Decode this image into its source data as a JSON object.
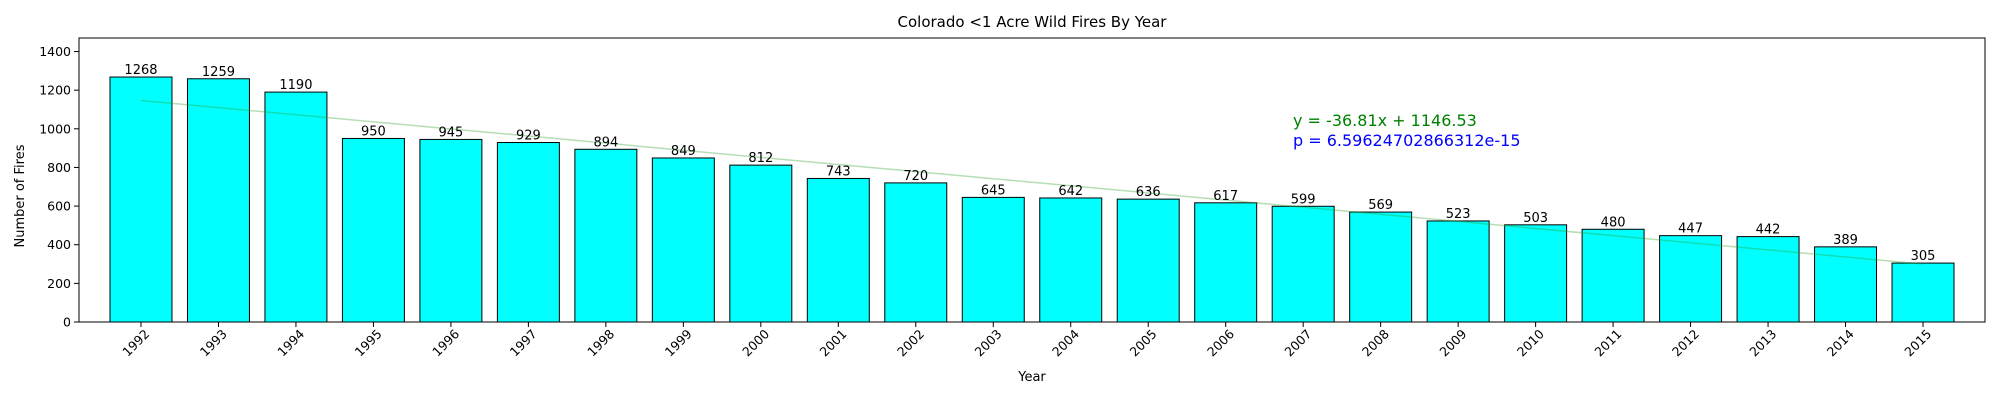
{
  "chart_data": {
    "type": "bar",
    "title": "Colorado <1 Acre Wild Fires By Year",
    "xlabel": "Year",
    "ylabel": "Number of Fires",
    "categories": [
      "1992",
      "1993",
      "1994",
      "1995",
      "1996",
      "1997",
      "1998",
      "1999",
      "2000",
      "2001",
      "2002",
      "2003",
      "2004",
      "2005",
      "2006",
      "2007",
      "2008",
      "2009",
      "2010",
      "2011",
      "2012",
      "2013",
      "2014",
      "2015"
    ],
    "values": [
      1268,
      1259,
      1190,
      950,
      945,
      929,
      894,
      849,
      812,
      743,
      720,
      645,
      642,
      636,
      617,
      599,
      569,
      523,
      503,
      480,
      447,
      442,
      389,
      305
    ],
    "ylim": [
      0,
      1470
    ],
    "yticks": [
      0,
      200,
      400,
      600,
      800,
      1000,
      1200,
      1400
    ],
    "bar_color": "#00ffff",
    "bar_edge_color": "#000000",
    "grid": false,
    "trendline": {
      "slope": -36.81,
      "intercept": 1146.53,
      "color": "#2ca02c"
    },
    "annotations": {
      "equation": "y = -36.81x + 1146.53",
      "equation_color": "#008000",
      "p_value": "p = 6.59624702866312e-15",
      "p_value_color": "#0000ff"
    }
  }
}
